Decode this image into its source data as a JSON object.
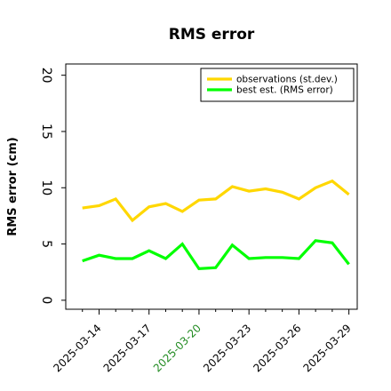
{
  "chart_data": {
    "type": "line",
    "title": "RMS error",
    "ylabel": "RMS error (cm)",
    "xlabel": "",
    "ylim": [
      -0.8,
      21
    ],
    "xlim": [
      "2025-03-12T00:00",
      "2025-03-29T12:00"
    ],
    "grid": false,
    "legend_position": "top-right",
    "yticks": [
      0,
      5,
      10,
      15,
      20
    ],
    "xticks": [
      "2025-03-14",
      "2025-03-17",
      "2025-03-20",
      "2025-03-23",
      "2025-03-26",
      "2025-03-29"
    ],
    "highlighted_xtick": "2025-03-20",
    "highlight_color": "#228b22",
    "x": [
      "2025-03-13",
      "2025-03-14",
      "2025-03-15",
      "2025-03-16",
      "2025-03-17",
      "2025-03-18",
      "2025-03-19",
      "2025-03-20",
      "2025-03-21",
      "2025-03-22",
      "2025-03-23",
      "2025-03-24",
      "2025-03-25",
      "2025-03-26",
      "2025-03-27",
      "2025-03-28",
      "2025-03-29"
    ],
    "series": [
      {
        "name": "observations (st.dev.)",
        "color": "#ffd700",
        "values": [
          8.2,
          8.4,
          9.0,
          7.1,
          8.3,
          8.6,
          7.9,
          8.9,
          9.0,
          10.1,
          9.7,
          9.9,
          9.6,
          9.0,
          10.0,
          10.6,
          9.4
        ]
      },
      {
        "name": "best est. (RMS error)",
        "color": "#00ff00",
        "values": [
          3.5,
          4.0,
          3.7,
          3.7,
          4.4,
          3.7,
          5.0,
          2.8,
          2.9,
          4.9,
          3.7,
          3.8,
          3.8,
          3.7,
          5.3,
          5.1,
          3.2
        ]
      }
    ]
  }
}
